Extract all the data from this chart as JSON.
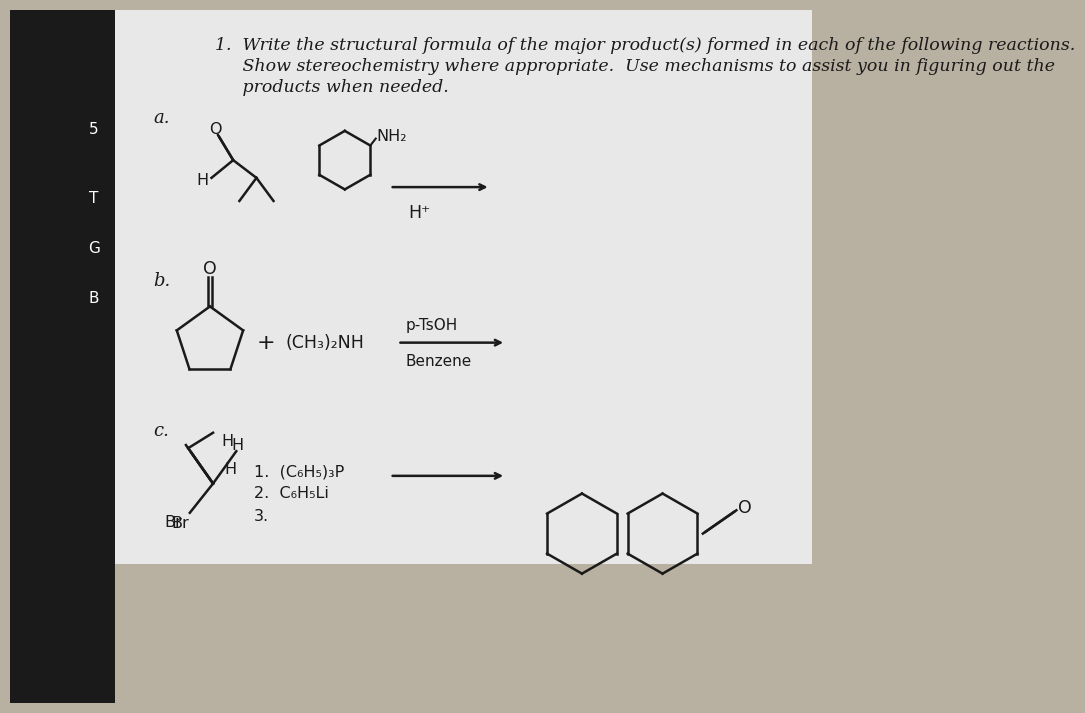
{
  "bg_left_color": "#2a2a2a",
  "bg_right_color": "#b8b0a0",
  "page_color": "#e8e8e8",
  "font_color": "#1a1a1a",
  "title_line1": "1.  Write the structural formula of the major product(s) formed in each of the following reactions.",
  "title_line2": "     Show stereochemistry where appropriate.  Use mechanisms to assist you in figuring out the",
  "title_line3": "     products when needed.",
  "label_a": "a.",
  "label_b": "b.",
  "label_c": "c.",
  "fs_title": 12.5,
  "fs_label": 13,
  "fs_chem": 11.5,
  "fs_small": 10
}
